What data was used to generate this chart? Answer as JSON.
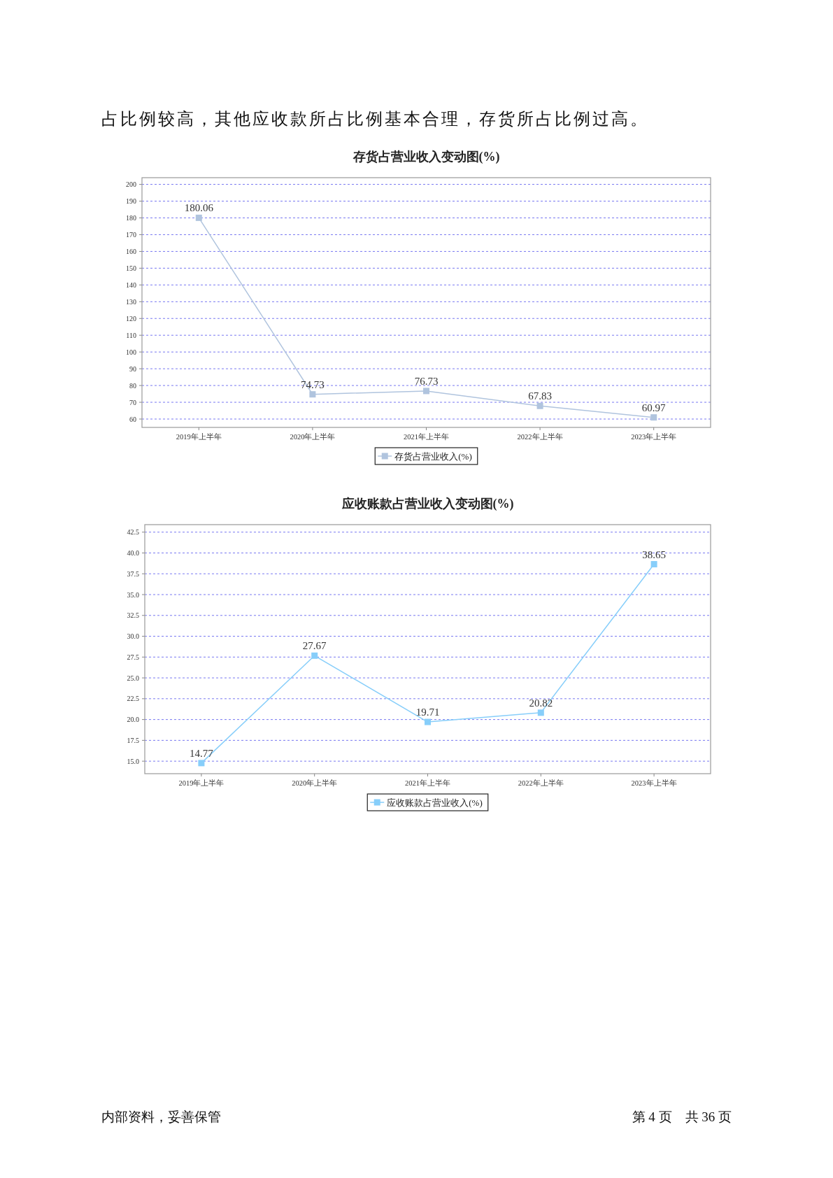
{
  "chart_data": [
    {
      "type": "line",
      "title": "存货占营业收入变动图(%)",
      "annotations": [
        "占比例较高，其他应收款所占比例基本合理，存货所占比例过高。"
      ],
      "categories": [
        "2019年上半年",
        "2020年上半年",
        "2021年上半年",
        "2022年上半年",
        "2023年上半年"
      ],
      "series": [
        {
          "name": "存货占营业收入(%)",
          "color": "#b0c4de",
          "values": [
            180.06,
            74.73,
            76.73,
            67.83,
            60.97
          ]
        }
      ],
      "ylim": [
        55,
        204
      ],
      "yticks": [
        60,
        70,
        80,
        90,
        100,
        110,
        120,
        130,
        140,
        150,
        160,
        170,
        180,
        190,
        200
      ],
      "grid": "y",
      "legend": "bottom",
      "marker": "square",
      "line_style": "solid",
      "data_labels": true
    },
    {
      "type": "line",
      "title": "应收账款占营业收入变动图(%)",
      "annotations": [
        "内部资料，妥善保管",
        "第 4 页　共 36 页"
      ],
      "categories": [
        "2019年上半年",
        "2020年上半年",
        "2021年上半年",
        "2022年上半年",
        "2023年上半年"
      ],
      "series": [
        {
          "name": "应收账款占营业收入(%)",
          "color": "#87cefa",
          "values": [
            14.77,
            27.67,
            19.71,
            20.82,
            38.65
          ]
        }
      ],
      "ylim": [
        13.5,
        43.4
      ],
      "yticks": [
        {
          "value": 15,
          "label": "15.0"
        },
        {
          "value": 17.5,
          "label": "17.5"
        },
        {
          "value": 20,
          "label": "20.0"
        },
        {
          "value": 22.5,
          "label": "22.5"
        },
        {
          "value": 25,
          "label": "25.0"
        },
        {
          "value": 27.5,
          "label": "27.5"
        },
        {
          "value": 30,
          "label": "30.0"
        },
        {
          "value": 32.5,
          "label": "32.5"
        },
        {
          "value": 35,
          "label": "35.0"
        },
        {
          "value": 37.5,
          "label": "37.5"
        },
        {
          "value": 40,
          "label": "40.0"
        },
        {
          "value": 42.5,
          "label": "42.5"
        }
      ],
      "grid": "y",
      "legend": "bottom",
      "marker": "square",
      "line_style": "solid",
      "data_labels": true
    }
  ]
}
